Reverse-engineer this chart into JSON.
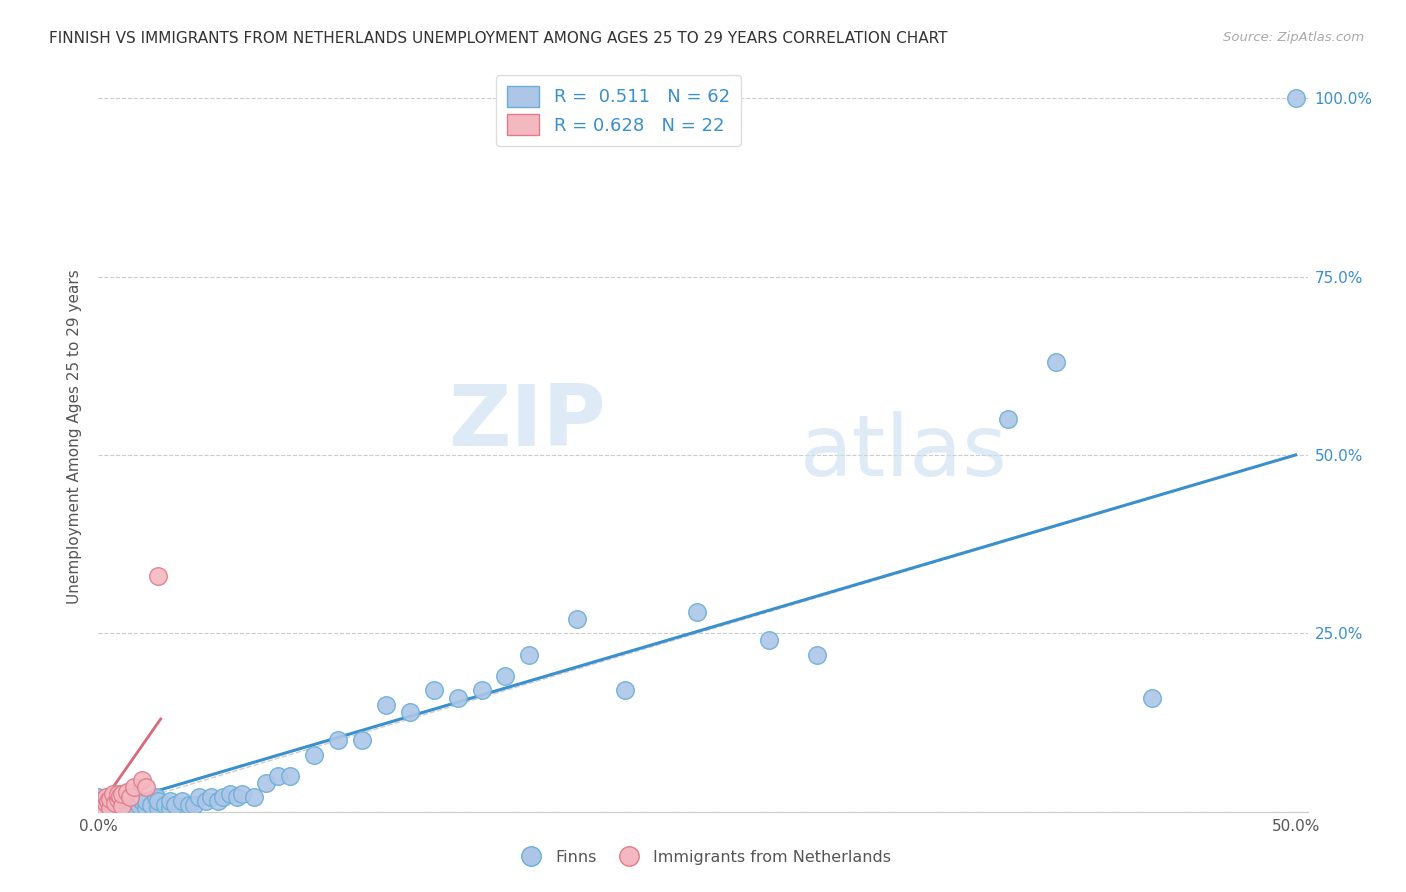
{
  "title": "FINNISH VS IMMIGRANTS FROM NETHERLANDS UNEMPLOYMENT AMONG AGES 25 TO 29 YEARS CORRELATION CHART",
  "source": "Source: ZipAtlas.com",
  "ylabel": "Unemployment Among Ages 25 to 29 years",
  "xlim": [
    0.0,
    0.5
  ],
  "ylim": [
    0.0,
    1.05
  ],
  "legend_r1": "R =  0.511",
  "legend_n1": "N = 62",
  "legend_r2": "R = 0.628",
  "legend_n2": "N = 22",
  "finn_color": "#adc6e8",
  "finn_edge_color": "#6aaed6",
  "imm_color": "#f4b8c1",
  "imm_edge_color": "#e07b8a",
  "finn_line_color": "#3a8fce",
  "imm_line_color": "#d9687a",
  "diagonal_color": "#cccccc",
  "watermark_zip": "ZIP",
  "watermark_atlas": "atlas",
  "finns_x": [
    0.0,
    0.0,
    0.0,
    0.003,
    0.004,
    0.005,
    0.005,
    0.006,
    0.007,
    0.008,
    0.01,
    0.01,
    0.012,
    0.013,
    0.015,
    0.015,
    0.017,
    0.018,
    0.02,
    0.02,
    0.022,
    0.024,
    0.025,
    0.025,
    0.028,
    0.03,
    0.03,
    0.032,
    0.035,
    0.038,
    0.04,
    0.042,
    0.045,
    0.047,
    0.05,
    0.052,
    0.055,
    0.058,
    0.06,
    0.065,
    0.07,
    0.075,
    0.08,
    0.09,
    0.1,
    0.11,
    0.12,
    0.13,
    0.14,
    0.15,
    0.16,
    0.17,
    0.18,
    0.2,
    0.22,
    0.25,
    0.28,
    0.3,
    0.38,
    0.4,
    0.44,
    0.5
  ],
  "finns_y": [
    0.005,
    0.01,
    0.02,
    0.005,
    0.015,
    0.008,
    0.02,
    0.01,
    0.015,
    0.01,
    0.005,
    0.02,
    0.01,
    0.015,
    0.005,
    0.02,
    0.01,
    0.015,
    0.005,
    0.015,
    0.01,
    0.02,
    0.005,
    0.015,
    0.01,
    0.005,
    0.015,
    0.01,
    0.015,
    0.01,
    0.01,
    0.02,
    0.015,
    0.02,
    0.015,
    0.02,
    0.025,
    0.02,
    0.025,
    0.02,
    0.04,
    0.05,
    0.05,
    0.08,
    0.1,
    0.1,
    0.15,
    0.14,
    0.17,
    0.16,
    0.17,
    0.19,
    0.22,
    0.27,
    0.17,
    0.28,
    0.24,
    0.22,
    0.55,
    0.63,
    0.16,
    1.0
  ],
  "imm_x": [
    0.0,
    0.0,
    0.0,
    0.002,
    0.003,
    0.003,
    0.004,
    0.005,
    0.005,
    0.006,
    0.007,
    0.008,
    0.008,
    0.009,
    0.01,
    0.01,
    0.012,
    0.013,
    0.015,
    0.018,
    0.02,
    0.025
  ],
  "imm_y": [
    0.005,
    0.01,
    0.015,
    0.008,
    0.012,
    0.02,
    0.015,
    0.005,
    0.018,
    0.025,
    0.012,
    0.018,
    0.025,
    0.022,
    0.008,
    0.025,
    0.028,
    0.02,
    0.035,
    0.045,
    0.035,
    0.33
  ]
}
